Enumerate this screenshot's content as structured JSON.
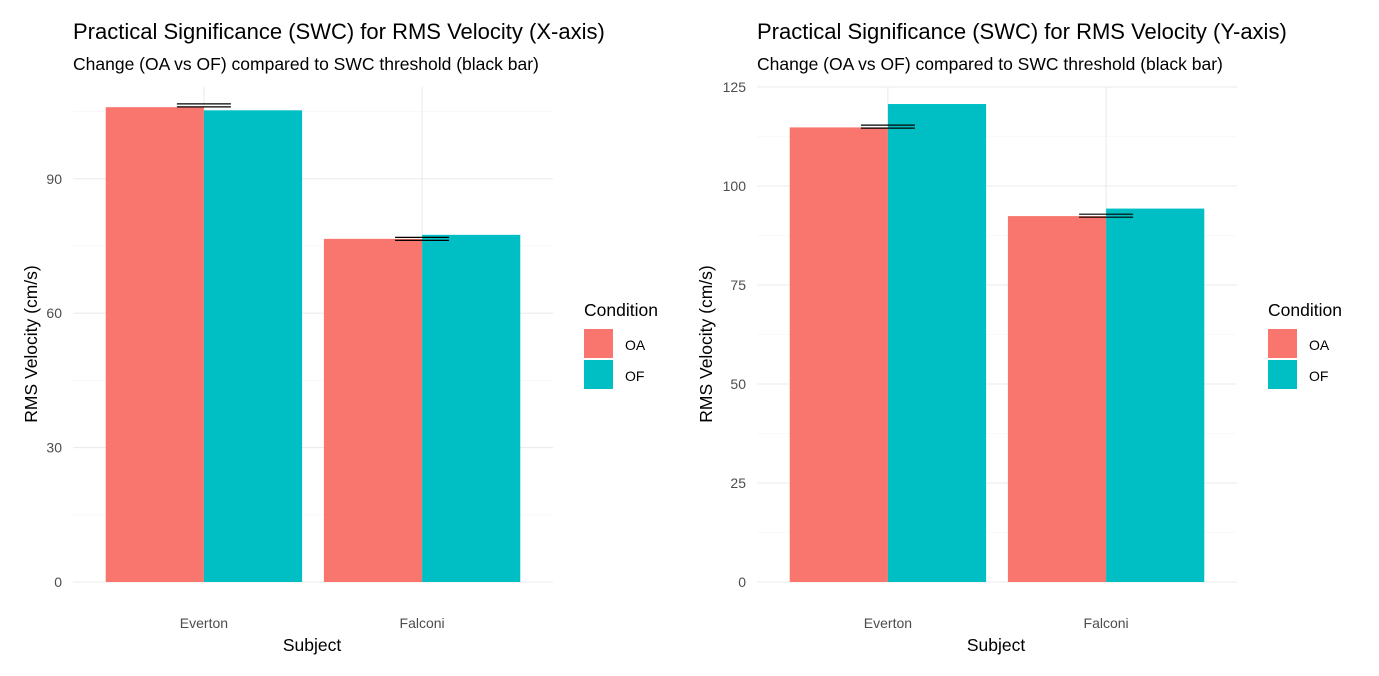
{
  "chart_data": [
    {
      "type": "bar",
      "title": "Practical Significance (SWC) for RMS Velocity (X-axis)",
      "subtitle": "Change (OA vs OF) compared to SWC threshold (black bar)",
      "xlabel": "Subject",
      "ylabel": "RMS Velocity (cm/s)",
      "categories": [
        "Everton",
        "Falconi"
      ],
      "series": [
        {
          "name": "OA",
          "color": "#F8766D",
          "values": [
            106.0,
            76.6
          ]
        },
        {
          "name": "OF",
          "color": "#00BFC4",
          "values": [
            105.3,
            77.5
          ]
        }
      ],
      "swc_threshold": {
        "values": [
          106.4,
          76.6
        ],
        "color": "#000000"
      },
      "ylim": [
        0,
        110.5
      ],
      "yticks": [
        0,
        30,
        60,
        90
      ],
      "ytick_labels": [
        "0",
        "30",
        "60",
        "90"
      ],
      "legend": {
        "title": "Condition",
        "position": "right"
      },
      "grid": true
    },
    {
      "type": "bar",
      "title": "Practical Significance (SWC) for RMS Velocity (Y-axis)",
      "subtitle": "Change (OA vs OF) compared to SWC threshold (black bar)",
      "xlabel": "Subject",
      "ylabel": "RMS Velocity (cm/s)",
      "categories": [
        "Everton",
        "Falconi"
      ],
      "series": [
        {
          "name": "OA",
          "color": "#F8766D",
          "values": [
            114.8,
            92.4
          ]
        },
        {
          "name": "OF",
          "color": "#00BFC4",
          "values": [
            120.7,
            94.3
          ]
        }
      ],
      "swc_threshold": {
        "values": [
          115.0,
          92.5
        ],
        "color": "#000000"
      },
      "ylim": [
        0,
        125
      ],
      "yticks": [
        0,
        25,
        50,
        75,
        100,
        125
      ],
      "ytick_labels": [
        "0",
        "25",
        "50",
        "75",
        "100",
        "125"
      ],
      "legend": {
        "title": "Condition",
        "position": "right"
      },
      "grid": true
    }
  ]
}
